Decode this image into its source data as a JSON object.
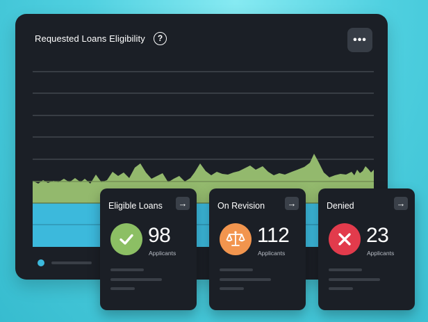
{
  "chart": {
    "title": "Requested Loans Eligibility",
    "help_icon": "question-circle-icon",
    "more_icon": "more-horizontal-icon",
    "more_label": "•••",
    "colors": {
      "panel": "#1b1f26",
      "gridline": "#4a4f57",
      "band_green": "#93b96d",
      "band_blue": "#3cb9dc"
    }
  },
  "cards": [
    {
      "title": "Eligible Loans",
      "count": "98",
      "count_label": "Applicants",
      "icon": "check-icon",
      "arrow": "→",
      "color": "#8cbf64"
    },
    {
      "title": "On Revision",
      "count": "112",
      "count_label": "Applicants",
      "icon": "scales-icon",
      "arrow": "→",
      "color": "#f2954e"
    },
    {
      "title": "Denied",
      "count": "23",
      "count_label": "Applicants",
      "icon": "close-icon",
      "arrow": "→",
      "color": "#e23b4c"
    }
  ]
}
